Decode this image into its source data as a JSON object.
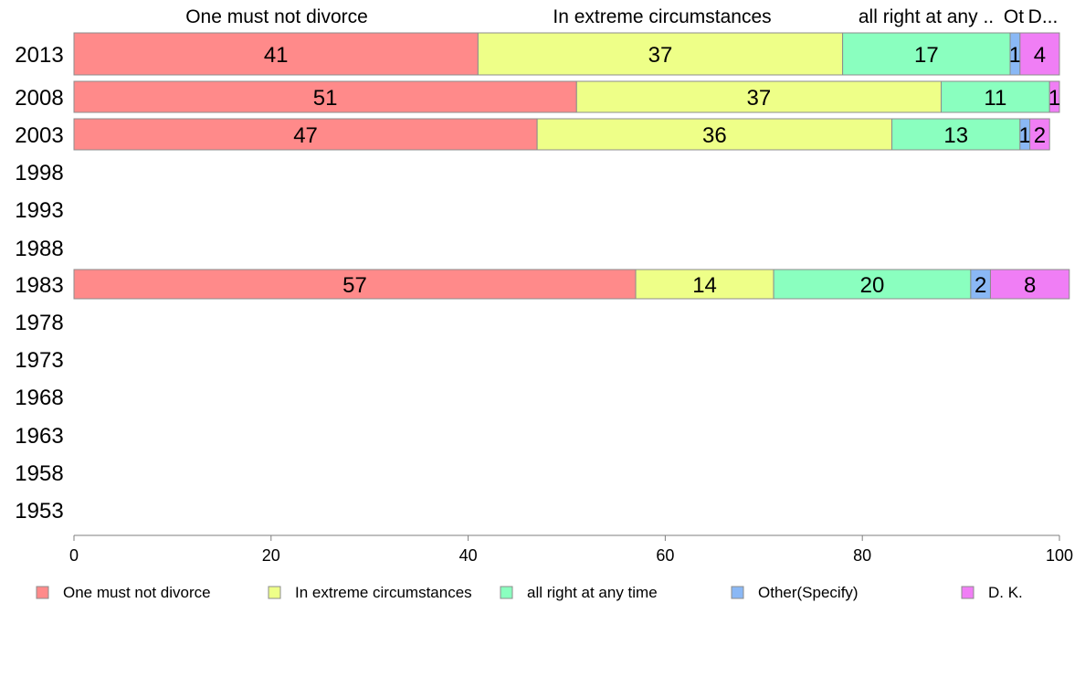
{
  "chart_data": {
    "type": "bar",
    "orientation": "horizontal",
    "stacked": true,
    "xlim": [
      0,
      100
    ],
    "x_ticks": [
      "0",
      "20",
      "40",
      "60",
      "80",
      "100"
    ],
    "categories": [
      "2013",
      "2008",
      "2003",
      "1998",
      "1993",
      "1988",
      "1983",
      "1978",
      "1973",
      "1968",
      "1963",
      "1958",
      "1953"
    ],
    "series": [
      {
        "name": "One must not divorce",
        "color": "#FF8A8A",
        "values": [
          41,
          51,
          47,
          null,
          null,
          null,
          57,
          null,
          null,
          null,
          null,
          null,
          null
        ],
        "labels": [
          "41",
          "51",
          "47",
          "",
          "",
          "",
          "57",
          "",
          "",
          "",
          "",
          "",
          ""
        ]
      },
      {
        "name": "In extreme circumstances",
        "color": "#EEFF88",
        "values": [
          37,
          37,
          36,
          null,
          null,
          null,
          14,
          null,
          null,
          null,
          null,
          null,
          null
        ],
        "labels": [
          "37",
          "37",
          "36",
          "",
          "",
          "",
          "14",
          "",
          "",
          "",
          "",
          "",
          ""
        ]
      },
      {
        "name": "all right at any time",
        "color": "#8AFFBF",
        "values": [
          17,
          11,
          13,
          null,
          null,
          null,
          20,
          null,
          null,
          null,
          null,
          null,
          null
        ],
        "labels": [
          "17",
          "11",
          "13",
          "",
          "",
          "",
          "20",
          "",
          "",
          "",
          "",
          "",
          ""
        ]
      },
      {
        "name": "Other(Specify)",
        "color": "#8AB8F5",
        "values": [
          1,
          0,
          1,
          null,
          null,
          null,
          2,
          null,
          null,
          null,
          null,
          null,
          null
        ],
        "labels": [
          "1",
          "",
          "1",
          "",
          "",
          "",
          "2",
          "",
          "",
          "",
          "",
          "",
          ""
        ]
      },
      {
        "name": "D. K.",
        "color": "#F07EF5",
        "values": [
          4,
          1,
          2,
          null,
          null,
          null,
          8,
          null,
          null,
          null,
          null,
          null,
          null
        ],
        "labels": [
          "4",
          "1",
          "2",
          "",
          "",
          "",
          "8",
          "",
          "",
          "",
          "",
          "",
          ""
        ]
      }
    ],
    "top_labels": [
      "One must not divorce",
      "In extreme circumstances",
      "all right at any ..",
      "Ot",
      "D..."
    ],
    "legend_position": "bottom",
    "grid": false
  }
}
